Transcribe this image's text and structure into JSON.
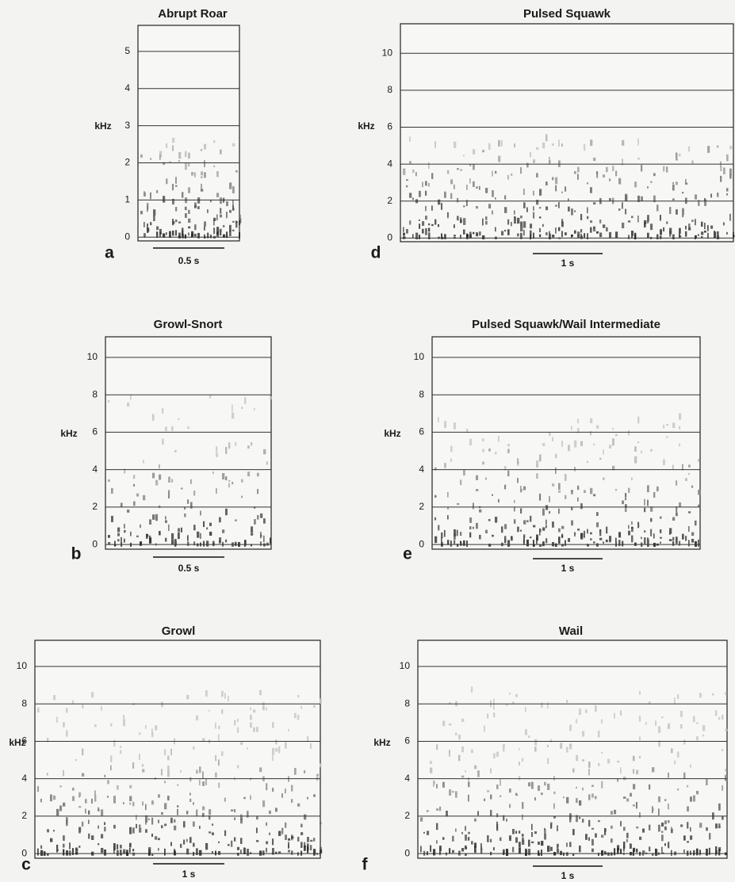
{
  "chart_data": [
    {
      "type": "spectrogram",
      "title": "Abrupt Roar",
      "panel_label": "a",
      "ylabel": "kHz",
      "ylim": [
        -0.1,
        5.7
      ],
      "yticks": [
        0,
        1,
        2,
        3,
        4,
        5
      ],
      "grid": true,
      "scale_bar": "0.5 s"
    },
    {
      "type": "spectrogram",
      "title": "Pulsed Squawk",
      "panel_label": "d",
      "ylabel": "kHz",
      "ylim": [
        -0.2,
        11.6
      ],
      "yticks": [
        0,
        2,
        4,
        6,
        8,
        10
      ],
      "grid": true,
      "scale_bar": "1 s"
    },
    {
      "type": "spectrogram",
      "title": "Growl-Snort",
      "panel_label": "b",
      "ylabel": "kHz",
      "ylim": [
        -0.25,
        11.1
      ],
      "yticks": [
        0,
        2,
        4,
        6,
        8,
        10
      ],
      "grid": true,
      "scale_bar": "0.5 s"
    },
    {
      "type": "spectrogram",
      "title": "Pulsed Squawk/Wail Intermediate",
      "panel_label": "e",
      "ylabel": "kHz",
      "ylim": [
        -0.25,
        11.1
      ],
      "yticks": [
        0,
        2,
        4,
        6,
        8,
        10
      ],
      "grid": true,
      "scale_bar": "1 s"
    },
    {
      "type": "spectrogram",
      "title": "Growl",
      "panel_label": "c",
      "ylabel": "kHz",
      "ylim": [
        -0.25,
        11.4
      ],
      "yticks": [
        0,
        2,
        4,
        6,
        8,
        10
      ],
      "grid": true,
      "scale_bar": "1 s"
    },
    {
      "type": "spectrogram",
      "title": "Wail",
      "panel_label": "f",
      "ylabel": "kHz",
      "ylim": [
        -0.25,
        11.4
      ],
      "yticks": [
        0,
        2,
        4,
        6,
        8,
        10
      ],
      "grid": true,
      "scale_bar": "1 s"
    }
  ]
}
